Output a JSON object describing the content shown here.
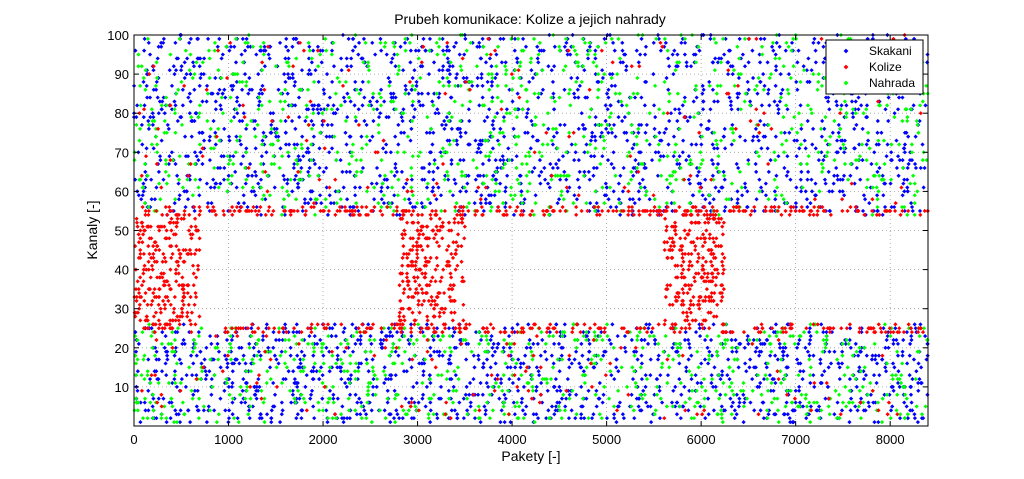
{
  "chart_data": {
    "type": "scatter",
    "title": "Prubeh komunikace: Kolize a jejich nahrady",
    "xlabel": "Pakety [-]",
    "ylabel": "Kanaly [-]",
    "xlim": [
      0,
      8400
    ],
    "ylim": [
      0,
      100
    ],
    "xticks": [
      "0",
      "1000",
      "2000",
      "3000",
      "4000",
      "5000",
      "6000",
      "7000",
      "8000"
    ],
    "yticks": [
      "10",
      "20",
      "30",
      "40",
      "50",
      "60",
      "70",
      "80",
      "90",
      "100"
    ],
    "grid": true,
    "legend_position": "top-right",
    "series": [
      {
        "name": "Skakani",
        "color": "#0000ff",
        "marker": "diamond",
        "x_range": [
          0,
          8400
        ],
        "y_bands": [
          [
            1,
            26
          ],
          [
            54,
            100
          ]
        ],
        "approx_points": 3000
      },
      {
        "name": "Kolize",
        "color": "#ff0000",
        "marker": "diamond",
        "x_range": [
          0,
          8400
        ],
        "y_bands": [
          [
            1,
            26
          ],
          [
            54,
            100
          ]
        ],
        "clusters": [
          {
            "x_range": [
              0,
              700
            ],
            "y_range": [
              26,
              54
            ]
          },
          {
            "x_range": [
              2800,
              3500
            ],
            "y_range": [
              26,
              54
            ]
          },
          {
            "x_range": [
              5600,
              6250
            ],
            "y_range": [
              26,
              54
            ]
          }
        ],
        "approx_points": 900
      },
      {
        "name": "Nahrada",
        "color": "#00ff00",
        "marker": "diamond",
        "x_range": [
          0,
          8400
        ],
        "y_bands": [
          [
            1,
            26
          ],
          [
            54,
            100
          ]
        ],
        "approx_points": 1600
      }
    ]
  }
}
